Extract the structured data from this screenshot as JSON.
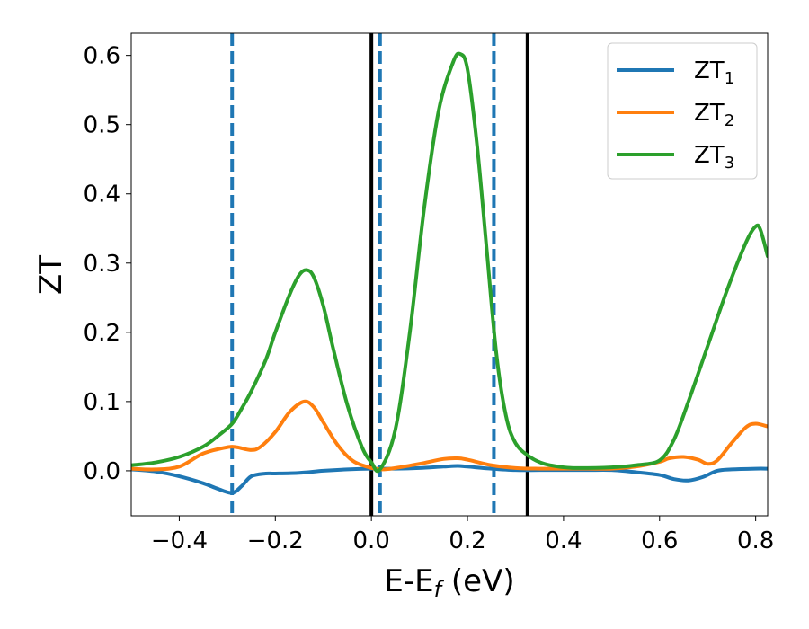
{
  "chart_data": {
    "type": "line",
    "xlabel_main": "E-E",
    "xlabel_sub": "f",
    "xlabel_tail": " (eV)",
    "ylabel": "ZT",
    "xlim": [
      -0.5,
      0.825
    ],
    "ylim": [
      -0.065,
      0.632
    ],
    "xticks": [
      -0.4,
      -0.2,
      0.0,
      0.2,
      0.4,
      0.6,
      0.8
    ],
    "xtick_labels": [
      "−0.4",
      "−0.2",
      "0.0",
      "0.2",
      "0.4",
      "0.6",
      "0.8"
    ],
    "yticks": [
      0.0,
      0.1,
      0.2,
      0.3,
      0.4,
      0.5,
      0.6
    ],
    "ytick_labels": [
      "0.0",
      "0.1",
      "0.2",
      "0.3",
      "0.4",
      "0.5",
      "0.6"
    ],
    "grid": false,
    "legend_position": "top-right",
    "vlines": [
      {
        "x": -0.29,
        "style": "dashed",
        "color": "#1f77b4"
      },
      {
        "x": 0.0,
        "style": "solid",
        "color": "#000000"
      },
      {
        "x": 0.018,
        "style": "dashed",
        "color": "#1f77b4"
      },
      {
        "x": 0.255,
        "style": "dashed",
        "color": "#1f77b4"
      },
      {
        "x": 0.325,
        "style": "solid",
        "color": "#000000"
      }
    ],
    "series": [
      {
        "name": "ZT",
        "name_sub": "1",
        "color": "#1f77b4",
        "x": [
          -0.5,
          -0.45,
          -0.4,
          -0.35,
          -0.32,
          -0.29,
          -0.27,
          -0.25,
          -0.22,
          -0.2,
          -0.15,
          -0.1,
          -0.05,
          0.0,
          0.05,
          0.1,
          0.15,
          0.18,
          0.2,
          0.25,
          0.3,
          0.35,
          0.4,
          0.45,
          0.5,
          0.55,
          0.6,
          0.63,
          0.66,
          0.69,
          0.72,
          0.75,
          0.8,
          0.825
        ],
        "y": [
          0.002,
          -0.001,
          -0.008,
          -0.018,
          -0.026,
          -0.032,
          -0.022,
          -0.008,
          -0.004,
          -0.004,
          -0.003,
          0.0,
          0.002,
          0.003,
          0.003,
          0.004,
          0.006,
          0.007,
          0.006,
          0.003,
          0.001,
          0.001,
          0.001,
          0.001,
          0.001,
          -0.002,
          -0.006,
          -0.012,
          -0.014,
          -0.009,
          0.0,
          0.002,
          0.003,
          0.003
        ]
      },
      {
        "name": "ZT",
        "name_sub": "2",
        "color": "#ff7f0e",
        "x": [
          -0.5,
          -0.45,
          -0.4,
          -0.35,
          -0.3,
          -0.28,
          -0.25,
          -0.23,
          -0.2,
          -0.17,
          -0.14,
          -0.12,
          -0.1,
          -0.07,
          -0.04,
          -0.01,
          0.02,
          0.05,
          0.1,
          0.15,
          0.18,
          0.2,
          0.25,
          0.3,
          0.35,
          0.4,
          0.45,
          0.5,
          0.55,
          0.6,
          0.62,
          0.65,
          0.68,
          0.7,
          0.72,
          0.75,
          0.78,
          0.8,
          0.825
        ],
        "y": [
          0.003,
          0.002,
          0.006,
          0.025,
          0.034,
          0.034,
          0.03,
          0.035,
          0.056,
          0.085,
          0.1,
          0.092,
          0.07,
          0.037,
          0.015,
          0.006,
          0.002,
          0.004,
          0.01,
          0.017,
          0.018,
          0.016,
          0.008,
          0.004,
          0.003,
          0.003,
          0.003,
          0.003,
          0.006,
          0.013,
          0.018,
          0.02,
          0.016,
          0.01,
          0.015,
          0.04,
          0.063,
          0.068,
          0.064
        ]
      },
      {
        "name": "ZT",
        "name_sub": "3",
        "color": "#2ca02c",
        "x": [
          -0.5,
          -0.45,
          -0.4,
          -0.35,
          -0.32,
          -0.29,
          -0.27,
          -0.25,
          -0.22,
          -0.2,
          -0.17,
          -0.15,
          -0.135,
          -0.12,
          -0.1,
          -0.08,
          -0.05,
          -0.02,
          0.0,
          0.018,
          0.05,
          0.08,
          0.11,
          0.14,
          0.17,
          0.185,
          0.2,
          0.22,
          0.24,
          0.26,
          0.28,
          0.3,
          0.33,
          0.36,
          0.4,
          0.43,
          0.5,
          0.55,
          0.6,
          0.63,
          0.66,
          0.7,
          0.74,
          0.78,
          0.8,
          0.81,
          0.825
        ],
        "y": [
          0.008,
          0.012,
          0.02,
          0.035,
          0.05,
          0.068,
          0.09,
          0.115,
          0.16,
          0.2,
          0.255,
          0.283,
          0.29,
          0.28,
          0.238,
          0.178,
          0.095,
          0.035,
          0.012,
          0.002,
          0.06,
          0.2,
          0.38,
          0.52,
          0.59,
          0.602,
          0.58,
          0.47,
          0.32,
          0.17,
          0.08,
          0.04,
          0.02,
          0.01,
          0.005,
          0.004,
          0.005,
          0.008,
          0.015,
          0.045,
          0.1,
          0.18,
          0.26,
          0.33,
          0.353,
          0.348,
          0.31
        ]
      }
    ]
  }
}
